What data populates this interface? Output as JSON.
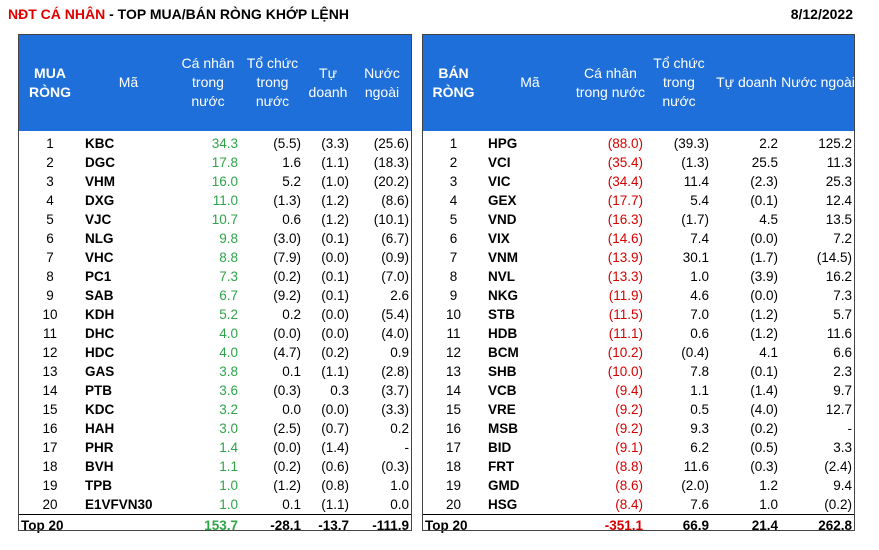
{
  "header": {
    "title_red": "NĐT CÁ NHÂN",
    "title_rest": " - TOP MUA/BÁN RÒNG KHỚP LỆNH",
    "date": "8/12/2022"
  },
  "buy": {
    "heading": [
      "MUA RÒNG",
      "Mã",
      "Cá nhân trong nước",
      "Tổ chức trong nước",
      "Tự doanh",
      "Nước ngoài"
    ],
    "rows": [
      [
        "1",
        "KBC",
        "34.3",
        "(5.5)",
        "(3.3)",
        "(25.6)"
      ],
      [
        "2",
        "DGC",
        "17.8",
        "1.6",
        "(1.1)",
        "(18.3)"
      ],
      [
        "3",
        "VHM",
        "16.0",
        "5.2",
        "(1.0)",
        "(20.2)"
      ],
      [
        "4",
        "DXG",
        "11.0",
        "(1.3)",
        "(1.2)",
        "(8.6)"
      ],
      [
        "5",
        "VJC",
        "10.7",
        "0.6",
        "(1.2)",
        "(10.1)"
      ],
      [
        "6",
        "NLG",
        "9.8",
        "(3.0)",
        "(0.1)",
        "(6.7)"
      ],
      [
        "7",
        "VHC",
        "8.8",
        "(7.9)",
        "(0.0)",
        "(0.9)"
      ],
      [
        "8",
        "PC1",
        "7.3",
        "(0.2)",
        "(0.1)",
        "(7.0)"
      ],
      [
        "9",
        "SAB",
        "6.7",
        "(9.2)",
        "(0.1)",
        "2.6"
      ],
      [
        "10",
        "KDH",
        "5.2",
        "0.2",
        "(0.0)",
        "(5.4)"
      ],
      [
        "11",
        "DHC",
        "4.0",
        "(0.0)",
        "(0.0)",
        "(4.0)"
      ],
      [
        "12",
        "HDC",
        "4.0",
        "(4.7)",
        "(0.2)",
        "0.9"
      ],
      [
        "13",
        "GAS",
        "3.8",
        "0.1",
        "(1.1)",
        "(2.8)"
      ],
      [
        "14",
        "PTB",
        "3.6",
        "(0.3)",
        "0.3",
        "(3.7)"
      ],
      [
        "15",
        "KDC",
        "3.2",
        "0.0",
        "(0.0)",
        "(3.3)"
      ],
      [
        "16",
        "HAH",
        "3.0",
        "(2.5)",
        "(0.7)",
        "0.2"
      ],
      [
        "17",
        "PHR",
        "1.4",
        "(0.0)",
        "(1.4)",
        "-"
      ],
      [
        "18",
        "BVH",
        "1.1",
        "(0.2)",
        "(0.6)",
        "(0.3)"
      ],
      [
        "19",
        "TPB",
        "1.0",
        "(1.2)",
        "(0.8)",
        "1.0"
      ],
      [
        "20",
        "E1VFVN30",
        "1.0",
        "0.1",
        "(1.1)",
        "0.0"
      ]
    ],
    "total": [
      "Top 20",
      "153.7",
      "-28.1",
      "-13.7",
      "-111.9"
    ]
  },
  "sell": {
    "heading": [
      "BÁN RÒNG",
      "Mã",
      "Cá nhân trong nước",
      "Tổ chức trong nước",
      "Tự doanh",
      "Nước ngoài"
    ],
    "rows": [
      [
        "1",
        "HPG",
        "(88.0)",
        "(39.3)",
        "2.2",
        "125.2"
      ],
      [
        "2",
        "VCI",
        "(35.4)",
        "(1.3)",
        "25.5",
        "11.3"
      ],
      [
        "3",
        "VIC",
        "(34.4)",
        "11.4",
        "(2.3)",
        "25.3"
      ],
      [
        "4",
        "GEX",
        "(17.7)",
        "5.4",
        "(0.1)",
        "12.4"
      ],
      [
        "5",
        "VND",
        "(16.3)",
        "(1.7)",
        "4.5",
        "13.5"
      ],
      [
        "6",
        "VIX",
        "(14.6)",
        "7.4",
        "(0.0)",
        "7.2"
      ],
      [
        "7",
        "VNM",
        "(13.9)",
        "30.1",
        "(1.7)",
        "(14.5)"
      ],
      [
        "8",
        "NVL",
        "(13.3)",
        "1.0",
        "(3.9)",
        "16.2"
      ],
      [
        "9",
        "NKG",
        "(11.9)",
        "4.6",
        "(0.0)",
        "7.3"
      ],
      [
        "10",
        "STB",
        "(11.5)",
        "7.0",
        "(1.2)",
        "5.7"
      ],
      [
        "11",
        "HDB",
        "(11.1)",
        "0.6",
        "(1.2)",
        "11.6"
      ],
      [
        "12",
        "BCM",
        "(10.2)",
        "(0.4)",
        "4.1",
        "6.6"
      ],
      [
        "13",
        "SHB",
        "(10.0)",
        "7.8",
        "(0.1)",
        "2.3"
      ],
      [
        "14",
        "VCB",
        "(9.4)",
        "1.1",
        "(1.4)",
        "9.7"
      ],
      [
        "15",
        "VRE",
        "(9.2)",
        "0.5",
        "(4.0)",
        "12.7"
      ],
      [
        "16",
        "MSB",
        "(9.2)",
        "9.3",
        "(0.2)",
        "-"
      ],
      [
        "17",
        "BID",
        "(9.1)",
        "6.2",
        "(0.5)",
        "3.3"
      ],
      [
        "18",
        "FRT",
        "(8.8)",
        "11.6",
        "(0.3)",
        "(2.4)"
      ],
      [
        "19",
        "GMD",
        "(8.6)",
        "(2.0)",
        "1.2",
        "9.4"
      ],
      [
        "20",
        "HSG",
        "(8.4)",
        "7.6",
        "1.0",
        "(0.2)"
      ]
    ],
    "total": [
      "Top 20",
      "-351.1",
      "66.9",
      "21.4",
      "262.8"
    ]
  },
  "colors": {
    "header_bg": "#1e6fd9",
    "positive": "#2ea34a",
    "negative": "#d40000",
    "title_red": "#e00000"
  }
}
